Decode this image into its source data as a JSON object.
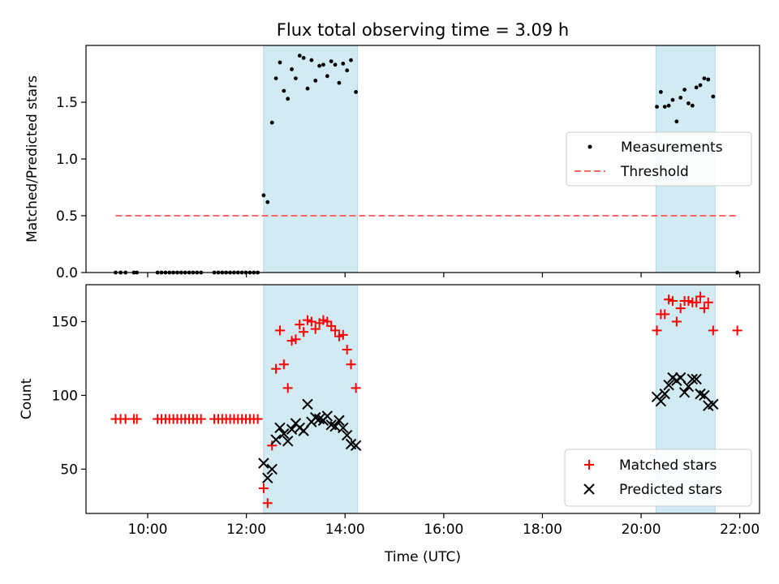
{
  "figure": {
    "title": "Flux total observing time = 3.09 h"
  },
  "colors": {
    "shade": "#add8e6",
    "threshold": "#ff6666",
    "matched": "#ff0000",
    "predicted": "#000000",
    "measurements": "#000000"
  },
  "chart_data": [
    {
      "type": "scatter",
      "name": "ratio-panel",
      "ylabel": "Matched/Predicted stars",
      "xlabel": "",
      "xlim": [
        8.75,
        22.4
      ],
      "ylim": [
        0,
        2.0
      ],
      "yticks": [
        0.0,
        0.5,
        1.0,
        1.5
      ],
      "ytick_labels": [
        "0.0",
        "0.5",
        "1.0",
        "1.5"
      ],
      "grid": false,
      "legend_position": "center-right",
      "legend": [
        "Measurements",
        "Threshold"
      ],
      "shaded_intervals": [
        [
          12.35,
          14.25
        ],
        [
          20.3,
          21.5
        ]
      ],
      "threshold": {
        "name": "Threshold",
        "value": 0.5,
        "x_range": [
          9.35,
          21.95
        ]
      },
      "series": [
        {
          "name": "Measurements",
          "marker": "dot",
          "points": [
            [
              9.35,
              0
            ],
            [
              9.45,
              0
            ],
            [
              9.55,
              0
            ],
            [
              9.72,
              0
            ],
            [
              9.78,
              0
            ],
            [
              10.2,
              0
            ],
            [
              10.28,
              0
            ],
            [
              10.36,
              0
            ],
            [
              10.44,
              0
            ],
            [
              10.52,
              0
            ],
            [
              10.6,
              0
            ],
            [
              10.68,
              0
            ],
            [
              10.76,
              0
            ],
            [
              10.84,
              0
            ],
            [
              10.92,
              0
            ],
            [
              11.0,
              0
            ],
            [
              11.08,
              0
            ],
            [
              11.35,
              0
            ],
            [
              11.43,
              0
            ],
            [
              11.51,
              0
            ],
            [
              11.59,
              0
            ],
            [
              11.67,
              0
            ],
            [
              11.75,
              0
            ],
            [
              11.83,
              0
            ],
            [
              11.91,
              0
            ],
            [
              11.99,
              0
            ],
            [
              12.07,
              0
            ],
            [
              12.15,
              0
            ],
            [
              12.23,
              0
            ],
            [
              12.35,
              0.68
            ],
            [
              12.43,
              0.62
            ],
            [
              12.52,
              1.32
            ],
            [
              12.6,
              1.71
            ],
            [
              12.68,
              1.85
            ],
            [
              12.76,
              1.6
            ],
            [
              12.84,
              1.53
            ],
            [
              12.92,
              1.79
            ],
            [
              13.0,
              1.71
            ],
            [
              13.08,
              1.91
            ],
            [
              13.16,
              1.89
            ],
            [
              13.24,
              1.62
            ],
            [
              13.32,
              1.87
            ],
            [
              13.4,
              1.69
            ],
            [
              13.48,
              1.82
            ],
            [
              13.56,
              1.83
            ],
            [
              13.64,
              1.73
            ],
            [
              13.72,
              1.86
            ],
            [
              13.8,
              1.83
            ],
            [
              13.88,
              1.67
            ],
            [
              13.96,
              1.84
            ],
            [
              14.04,
              1.78
            ],
            [
              14.12,
              1.87
            ],
            [
              14.22,
              1.59
            ],
            [
              20.32,
              1.46
            ],
            [
              20.4,
              1.59
            ],
            [
              20.48,
              1.46
            ],
            [
              20.56,
              1.47
            ],
            [
              20.64,
              1.52
            ],
            [
              20.72,
              1.33
            ],
            [
              20.8,
              1.54
            ],
            [
              20.88,
              1.61
            ],
            [
              20.96,
              1.49
            ],
            [
              21.04,
              1.47
            ],
            [
              21.12,
              1.63
            ],
            [
              21.2,
              1.65
            ],
            [
              21.28,
              1.71
            ],
            [
              21.36,
              1.7
            ],
            [
              21.46,
              1.55
            ],
            [
              21.95,
              0
            ]
          ]
        }
      ]
    },
    {
      "type": "scatter",
      "name": "count-panel",
      "ylabel": "Count",
      "xlabel": "Time (UTC)",
      "xlim": [
        8.75,
        22.4
      ],
      "ylim": [
        20,
        175
      ],
      "yticks": [
        50,
        100,
        150
      ],
      "ytick_labels": [
        "50",
        "100",
        "150"
      ],
      "xticks": [
        10,
        12,
        14,
        16,
        18,
        20,
        22
      ],
      "xtick_labels": [
        "10:00",
        "12:00",
        "14:00",
        "16:00",
        "18:00",
        "20:00",
        "22:00"
      ],
      "grid": false,
      "legend_position": "bottom-right",
      "legend": [
        "Matched stars",
        "Predicted stars"
      ],
      "shaded_intervals": [
        [
          12.35,
          14.25
        ],
        [
          20.3,
          21.5
        ]
      ],
      "series": [
        {
          "name": "Matched stars",
          "marker": "plus",
          "points": [
            [
              9.35,
              84
            ],
            [
              9.45,
              84
            ],
            [
              9.55,
              84
            ],
            [
              9.72,
              84
            ],
            [
              9.78,
              84
            ],
            [
              10.2,
              84
            ],
            [
              10.28,
              84
            ],
            [
              10.36,
              84
            ],
            [
              10.44,
              84
            ],
            [
              10.52,
              84
            ],
            [
              10.6,
              84
            ],
            [
              10.68,
              84
            ],
            [
              10.76,
              84
            ],
            [
              10.84,
              84
            ],
            [
              10.92,
              84
            ],
            [
              11.0,
              84
            ],
            [
              11.08,
              84
            ],
            [
              11.35,
              84
            ],
            [
              11.43,
              84
            ],
            [
              11.51,
              84
            ],
            [
              11.59,
              84
            ],
            [
              11.67,
              84
            ],
            [
              11.75,
              84
            ],
            [
              11.83,
              84
            ],
            [
              11.91,
              84
            ],
            [
              11.99,
              84
            ],
            [
              12.07,
              84
            ],
            [
              12.15,
              84
            ],
            [
              12.23,
              84
            ],
            [
              12.35,
              37
            ],
            [
              12.43,
              27
            ],
            [
              12.52,
              66
            ],
            [
              12.6,
              118
            ],
            [
              12.68,
              144
            ],
            [
              12.76,
              121
            ],
            [
              12.84,
              105
            ],
            [
              12.92,
              137
            ],
            [
              13.0,
              138
            ],
            [
              13.08,
              148
            ],
            [
              13.16,
              143
            ],
            [
              13.24,
              151
            ],
            [
              13.32,
              150
            ],
            [
              13.4,
              145
            ],
            [
              13.48,
              149
            ],
            [
              13.56,
              151
            ],
            [
              13.64,
              150
            ],
            [
              13.72,
              147
            ],
            [
              13.8,
              144
            ],
            [
              13.88,
              140
            ],
            [
              13.96,
              141
            ],
            [
              14.04,
              131
            ],
            [
              14.12,
              121
            ],
            [
              14.22,
              105
            ],
            [
              20.32,
              144
            ],
            [
              20.4,
              155
            ],
            [
              20.48,
              155
            ],
            [
              20.56,
              165
            ],
            [
              20.64,
              164
            ],
            [
              20.72,
              150
            ],
            [
              20.8,
              159
            ],
            [
              20.88,
              164
            ],
            [
              20.96,
              164
            ],
            [
              21.04,
              163
            ],
            [
              21.12,
              163
            ],
            [
              21.2,
              167
            ],
            [
              21.28,
              159
            ],
            [
              21.36,
              163
            ],
            [
              21.46,
              144
            ],
            [
              21.95,
              144
            ]
          ]
        },
        {
          "name": "Predicted stars",
          "marker": "x",
          "points": [
            [
              12.35,
              54
            ],
            [
              12.43,
              44
            ],
            [
              12.52,
              50
            ],
            [
              12.6,
              70
            ],
            [
              12.68,
              78
            ],
            [
              12.76,
              74
            ],
            [
              12.84,
              69
            ],
            [
              12.92,
              77
            ],
            [
              13.0,
              81
            ],
            [
              13.08,
              78
            ],
            [
              13.16,
              76
            ],
            [
              13.24,
              94
            ],
            [
              13.32,
              82
            ],
            [
              13.4,
              85
            ],
            [
              13.48,
              84
            ],
            [
              13.56,
              83
            ],
            [
              13.64,
              86
            ],
            [
              13.72,
              80
            ],
            [
              13.8,
              79
            ],
            [
              13.88,
              83
            ],
            [
              13.96,
              78
            ],
            [
              14.04,
              73
            ],
            [
              14.12,
              67
            ],
            [
              14.22,
              66
            ],
            [
              20.32,
              99
            ],
            [
              20.4,
              96
            ],
            [
              20.48,
              101
            ],
            [
              20.56,
              107
            ],
            [
              20.64,
              112
            ],
            [
              20.72,
              110
            ],
            [
              20.8,
              112
            ],
            [
              20.88,
              102
            ],
            [
              20.96,
              106
            ],
            [
              21.04,
              111
            ],
            [
              21.12,
              111
            ],
            [
              21.2,
              101
            ],
            [
              21.28,
              100
            ],
            [
              21.36,
              93
            ],
            [
              21.46,
              94
            ]
          ]
        }
      ]
    }
  ]
}
